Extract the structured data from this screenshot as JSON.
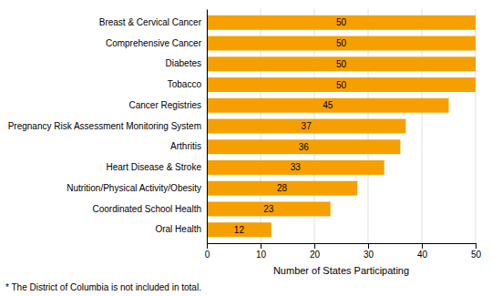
{
  "chart_data": {
    "type": "bar",
    "orientation": "horizontal",
    "categories": [
      "Breast & Cervical Cancer",
      "Comprehensive Cancer",
      "Diabetes",
      "Tobacco",
      "Cancer Registries",
      "Pregnancy Risk Assessment Monitoring System",
      "Arthritis",
      "Heart Disease & Stroke",
      "Nutrition/Physical Activity/Obesity",
      "Coordinated School Health",
      "Oral Health"
    ],
    "values": [
      50,
      50,
      50,
      50,
      45,
      37,
      36,
      33,
      28,
      23,
      12
    ],
    "color": "#F5A000",
    "xlabel": "Number of States Participating",
    "xlim": [
      0,
      50
    ],
    "xticks": [
      0,
      10,
      20,
      30,
      40,
      50
    ],
    "grid": true,
    "data_labels": true,
    "footnote": "* The District of Columbia is not included in total."
  }
}
